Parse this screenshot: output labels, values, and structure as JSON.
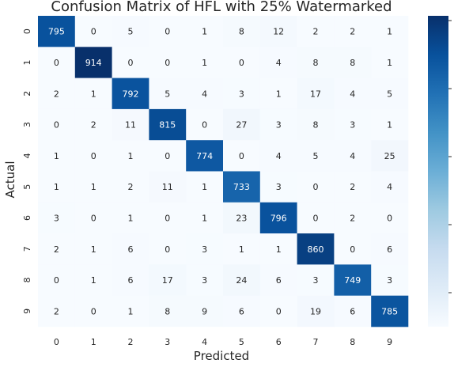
{
  "chart_data": {
    "type": "heatmap",
    "title": "Confusion Matrix of HFL with 25% Watermarked",
    "xlabel": "Predicted",
    "ylabel": "Actual",
    "x_categories": [
      "0",
      "1",
      "2",
      "3",
      "4",
      "5",
      "6",
      "7",
      "8",
      "9"
    ],
    "y_categories": [
      "0",
      "1",
      "2",
      "3",
      "4",
      "5",
      "6",
      "7",
      "8",
      "9"
    ],
    "values": [
      [
        795,
        0,
        5,
        0,
        1,
        8,
        12,
        2,
        2,
        1
      ],
      [
        0,
        914,
        0,
        0,
        1,
        0,
        4,
        8,
        8,
        1
      ],
      [
        2,
        1,
        792,
        5,
        4,
        3,
        1,
        17,
        4,
        5
      ],
      [
        0,
        2,
        11,
        815,
        0,
        27,
        3,
        8,
        3,
        1
      ],
      [
        1,
        0,
        1,
        0,
        774,
        0,
        4,
        5,
        4,
        25
      ],
      [
        1,
        1,
        2,
        11,
        1,
        733,
        3,
        0,
        2,
        4
      ],
      [
        3,
        0,
        1,
        0,
        1,
        23,
        796,
        0,
        2,
        0
      ],
      [
        2,
        1,
        6,
        0,
        3,
        1,
        1,
        860,
        0,
        6
      ],
      [
        0,
        1,
        6,
        17,
        3,
        24,
        6,
        3,
        749,
        3
      ],
      [
        2,
        0,
        1,
        8,
        9,
        6,
        0,
        19,
        6,
        785
      ]
    ],
    "colormap": "Blues",
    "color_range": [
      0,
      914
    ],
    "colorbar": true,
    "grid": false,
    "colors": {
      "low": "#f7fbff",
      "high": "#08306b"
    }
  }
}
